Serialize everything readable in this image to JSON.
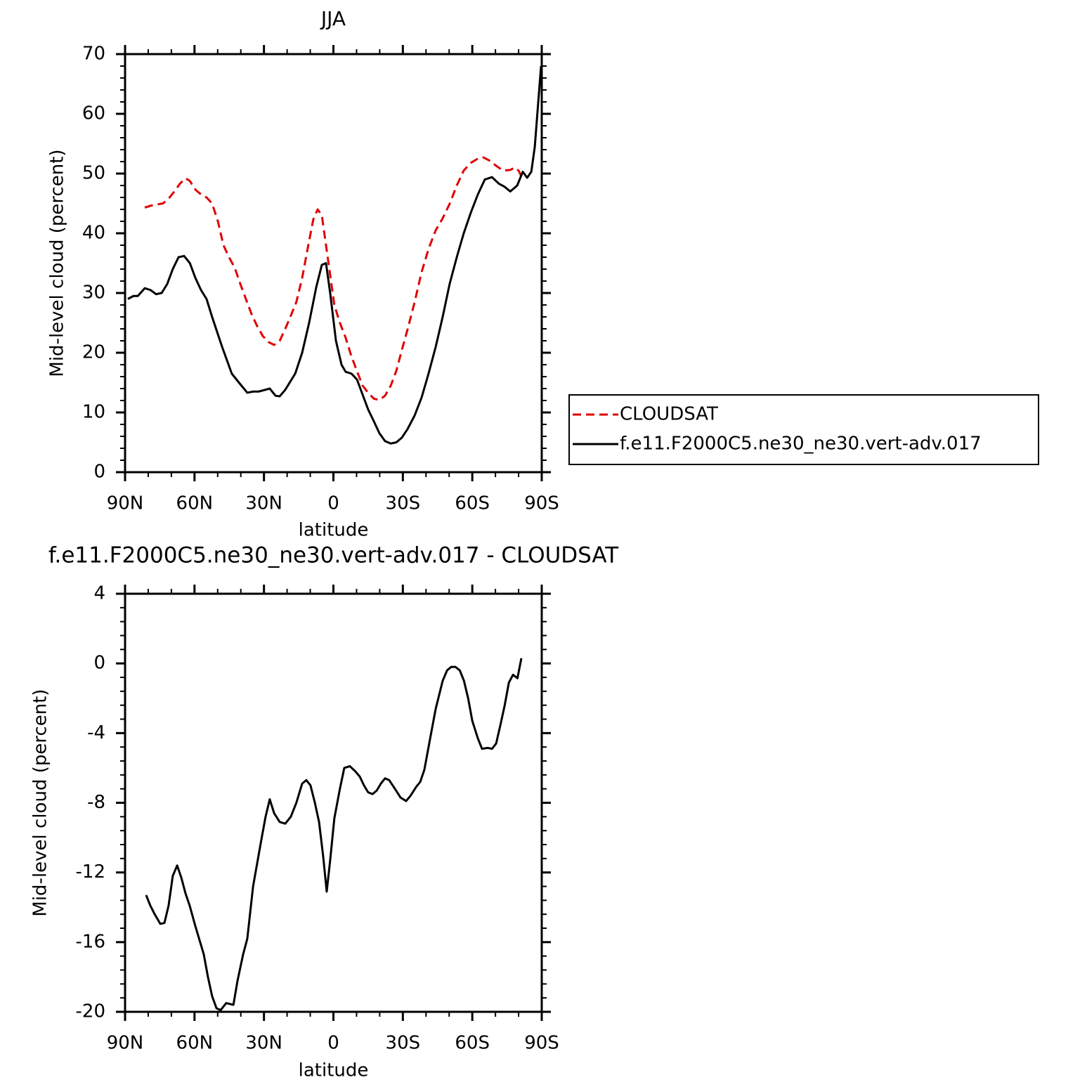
{
  "chart_data": [
    {
      "type": "line",
      "title": "JJA",
      "xlabel": "latitude",
      "ylabel": "Mid-level cloud (percent)",
      "xlim": [
        90,
        -90
      ],
      "ylim": [
        0,
        70
      ],
      "xticks": [
        {
          "value": 90,
          "label": "90N"
        },
        {
          "value": 60,
          "label": "60N"
        },
        {
          "value": 30,
          "label": "30N"
        },
        0,
        {
          "value": -30,
          "label": "30S"
        },
        {
          "value": -60,
          "label": "60S"
        },
        {
          "value": -90,
          "label": "90S"
        }
      ],
      "yticks": [
        0,
        10,
        20,
        30,
        40,
        50,
        60,
        70
      ],
      "legend": "right",
      "series": [
        {
          "name": "CLOUDSAT",
          "color": "#e00000",
          "line_style": "dashed",
          "x": [
            81.5,
            79.1,
            76.6,
            73.6,
            71.2,
            68.7,
            66.3,
            63.9,
            62.1,
            59.6,
            57.2,
            54.8,
            52.4,
            49.9,
            47.5,
            45.1,
            42.6,
            40.2,
            37.8,
            35.4,
            33,
            30.5,
            28.1,
            25.6,
            23.2,
            20.8,
            18.4,
            16,
            13.5,
            11.1,
            8.7,
            6.8,
            5,
            3.2,
            1.4,
            -0.4,
            -2.8,
            -5.3,
            -7.7,
            -10.1,
            -12.6,
            -15,
            -17.5,
            -19.9,
            -22.3,
            -24.8,
            -27.2,
            -29.6,
            -32.1,
            -35.1,
            -38.1,
            -41.2,
            -44.2,
            -47.2,
            -50.3,
            -53.3,
            -56.3,
            -59.4,
            -62.4,
            -64.8,
            -67.3,
            -70.3,
            -73.3,
            -76.4,
            -78.2,
            -80,
            -81.5
          ],
          "values": [
            44.3,
            44.6,
            44.8,
            45,
            45.8,
            47,
            48.3,
            49.2,
            48.8,
            47.3,
            46.5,
            46,
            45,
            42,
            38,
            36,
            34.2,
            31.5,
            29,
            26.5,
            24.5,
            22.8,
            21.8,
            21.3,
            22,
            24,
            26.2,
            28.5,
            32.5,
            37.5,
            42.3,
            44,
            43,
            38,
            33,
            28,
            25,
            22.5,
            19.5,
            17,
            14.5,
            13.3,
            12.3,
            12.1,
            12.8,
            14.5,
            17,
            20.5,
            24,
            28.5,
            33.5,
            37.5,
            40.5,
            42.5,
            45,
            48,
            50.5,
            51.8,
            52.5,
            52.7,
            52.2,
            51.3,
            50.5,
            50.6,
            51,
            50.5,
            49.3
          ]
        },
        {
          "name": "f.e11.F2000C5.ne30_ne30.vert-adv.017",
          "color": "#000000",
          "line_style": "solid",
          "x": [
            88.8,
            86.4,
            84.5,
            81.5,
            79,
            76.6,
            74.2,
            71.8,
            69.4,
            66.9,
            64.5,
            62,
            59.6,
            57.2,
            54.8,
            52.4,
            48.1,
            43.9,
            40.8,
            37.2,
            34.7,
            32.3,
            27.5,
            25,
            23.2,
            20.8,
            16.5,
            13.5,
            10.5,
            7.4,
            5,
            3.2,
            1.4,
            -1.1,
            -3.5,
            -5.3,
            -7.8,
            -10.2,
            -12.6,
            -15,
            -17.5,
            -19.9,
            -22.3,
            -24.8,
            -27.2,
            -29.6,
            -32,
            -35.1,
            -38.1,
            -41.1,
            -44.2,
            -47.2,
            -50.2,
            -53.3,
            -56.3,
            -59.4,
            -62.4,
            -65.4,
            -68.5,
            -71.5,
            -73.9,
            -76.4,
            -79.4,
            -81.8,
            -83.7,
            -85.5,
            -87,
            -88.5,
            -89.7
          ],
          "values": [
            29,
            29.5,
            29.5,
            30.8,
            30.5,
            29.8,
            30,
            31.5,
            34,
            36,
            36.2,
            35,
            32.5,
            30.5,
            29,
            26,
            21,
            16.5,
            15,
            13.3,
            13.5,
            13.5,
            14,
            12.8,
            12.7,
            13.8,
            16.5,
            20,
            25,
            31,
            34.7,
            35,
            30,
            22,
            18,
            16.8,
            16.5,
            15.5,
            13,
            10.5,
            8.5,
            6.5,
            5.2,
            4.8,
            5,
            5.8,
            7.2,
            9.5,
            12.5,
            16.5,
            21,
            26,
            31.5,
            36,
            40,
            43.5,
            46.5,
            49,
            49.4,
            48.3,
            47.8,
            47,
            48,
            50.3,
            49.3,
            50.3,
            54.5,
            62,
            68
          ]
        }
      ]
    },
    {
      "type": "line",
      "title": "f.e11.F2000C5.ne30_ne30.vert-adv.017 - CLOUDSAT",
      "xlabel": "latitude",
      "ylabel": "Mid-level cloud (percent)",
      "xlim": [
        90,
        -90
      ],
      "ylim": [
        -20,
        4
      ],
      "xticks": [
        {
          "value": 90,
          "label": "90N"
        },
        {
          "value": 60,
          "label": "60N"
        },
        {
          "value": 30,
          "label": "30N"
        },
        0,
        {
          "value": -30,
          "label": "30S"
        },
        {
          "value": -60,
          "label": "60S"
        },
        {
          "value": -90,
          "label": "90S"
        }
      ],
      "yticks": [
        -20,
        -16,
        -12,
        -8,
        -4,
        0,
        4
      ],
      "series": [
        {
          "color": "#000000",
          "line_style": "solid",
          "x": [
            80.9,
            79.1,
            77.2,
            74.8,
            73,
            71.2,
            69.4,
            67.5,
            65.7,
            63.9,
            62.1,
            59.6,
            56,
            54.2,
            52.4,
            50.5,
            48.7,
            46.3,
            43.2,
            41.4,
            39,
            37.2,
            34.7,
            31.1,
            29.3,
            27.5,
            25.6,
            23.2,
            20.8,
            18.4,
            16,
            13.5,
            11.7,
            9.9,
            8,
            6.2,
            4.4,
            2.9,
            1.4,
            -0.4,
            -2.8,
            -4.7,
            -7.1,
            -9.5,
            -11.4,
            -13.2,
            -15,
            -16.9,
            -18.7,
            -20.5,
            -22.3,
            -24.1,
            -26.6,
            -29,
            -31.4,
            -33.3,
            -35.7,
            -37.5,
            -39.3,
            -41.8,
            -44.2,
            -47.2,
            -49.1,
            -50.9,
            -52.7,
            -54.6,
            -56.4,
            -58.2,
            -60,
            -62.4,
            -64.2,
            -66.7,
            -68.5,
            -70.3,
            -72.2,
            -74,
            -75.8,
            -77.6,
            -79.5,
            -81.2
          ],
          "values": [
            -13.3,
            -13.9,
            -14.4,
            -14.95,
            -14.9,
            -13.9,
            -12.2,
            -11.6,
            -12.3,
            -13.2,
            -13.9,
            -15.1,
            -16.7,
            -18,
            -19.1,
            -19.8,
            -19.9,
            -19.5,
            -19.6,
            -18.2,
            -16.7,
            -15.8,
            -12.8,
            -10.1,
            -8.8,
            -7.8,
            -8.6,
            -9.1,
            -9.2,
            -8.8,
            -8,
            -6.9,
            -6.7,
            -7,
            -8,
            -9.1,
            -11.1,
            -13.1,
            -11.3,
            -8.9,
            -7.2,
            -6,
            -5.9,
            -6.2,
            -6.5,
            -7,
            -7.4,
            -7.5,
            -7.3,
            -6.9,
            -6.6,
            -6.7,
            -7.2,
            -7.7,
            -7.9,
            -7.6,
            -7.1,
            -6.8,
            -6.1,
            -4.3,
            -2.6,
            -1,
            -0.4,
            -0.2,
            -0.2,
            -0.4,
            -1,
            -2,
            -3.3,
            -4.3,
            -4.9,
            -4.85,
            -4.9,
            -4.6,
            -3.5,
            -2.4,
            -1.1,
            -0.65,
            -0.85,
            0.3
          ]
        }
      ]
    }
  ]
}
